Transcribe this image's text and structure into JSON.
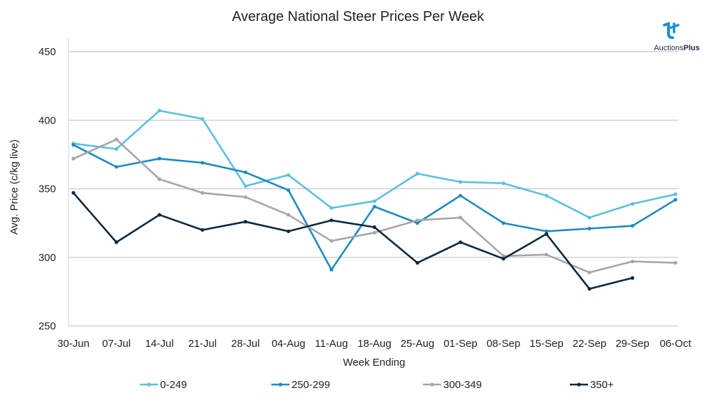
{
  "chart_data": {
    "type": "line",
    "title": "Average National Steer Prices Per Week",
    "xlabel": "Week Ending",
    "ylabel": "Avg. Price (c/kg live)",
    "ylim": [
      250,
      450
    ],
    "yticks": [
      250,
      300,
      350,
      400,
      450
    ],
    "grid": true,
    "legend_position": "bottom",
    "categories": [
      "30-Jun",
      "07-Jul",
      "14-Jul",
      "21-Jul",
      "28-Jul",
      "04-Aug",
      "11-Aug",
      "18-Aug",
      "25-Aug",
      "01-Sep",
      "08-Sep",
      "15-Sep",
      "22-Sep",
      "29-Sep",
      "06-Oct"
    ],
    "series": [
      {
        "name": "0-249",
        "color": "#5bc0de",
        "values": [
          383,
          379,
          407,
          401,
          352,
          360,
          336,
          341,
          361,
          355,
          354,
          345,
          329,
          339,
          346
        ]
      },
      {
        "name": "250-299",
        "color": "#1f8ac0",
        "values": [
          382,
          366,
          372,
          369,
          362,
          349,
          291,
          337,
          325,
          345,
          325,
          319,
          321,
          323,
          342
        ]
      },
      {
        "name": "300-349",
        "color": "#a6a6a6",
        "values": [
          372,
          386,
          357,
          347,
          344,
          331,
          312,
          318,
          327,
          329,
          301,
          302,
          289,
          297,
          296
        ]
      },
      {
        "name": "350+",
        "color": "#0d2840",
        "values": [
          347,
          311,
          331,
          320,
          326,
          319,
          327,
          322,
          296,
          311,
          299,
          317,
          277,
          285,
          null
        ]
      }
    ]
  },
  "logo": {
    "text_regular": "Auctions",
    "text_bold": "Plus",
    "icon": "auctionsplus-logo-icon",
    "color": "#1a8fd6"
  }
}
